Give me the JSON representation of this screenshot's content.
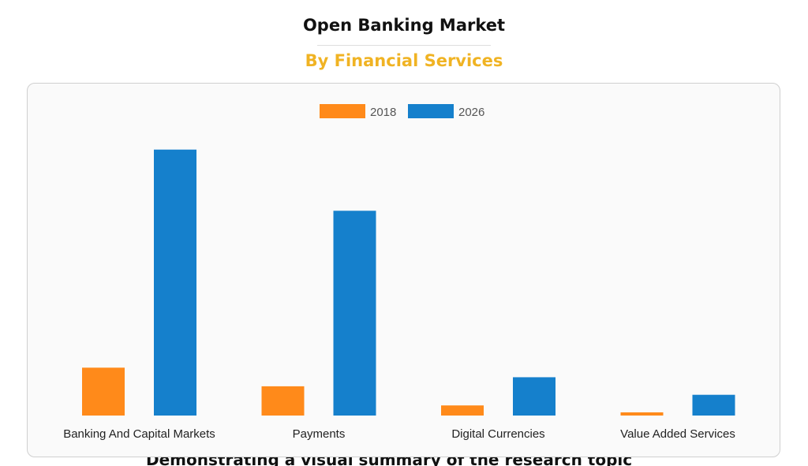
{
  "page": {
    "title": "Open Banking Market",
    "subtitle": "By Financial Services",
    "subtitle_color": "#f0b323",
    "footer_partial": "Demonstrating a visual summary of the research topic"
  },
  "chart_data": {
    "type": "bar",
    "categories": [
      "Banking And Capital Markets",
      "Payments",
      "Digital Currencies",
      "Value Added Services"
    ],
    "series": [
      {
        "name": "2018",
        "color": "#ff8a1a",
        "values": [
          9.0,
          5.5,
          1.9,
          0.6
        ]
      },
      {
        "name": "2026",
        "color": "#1580cc",
        "values": [
          50.0,
          38.5,
          7.2,
          3.9
        ]
      }
    ],
    "ylim": [
      0,
      55
    ],
    "grid": false,
    "legend": "top-center",
    "xlabel": "",
    "ylabel": ""
  }
}
